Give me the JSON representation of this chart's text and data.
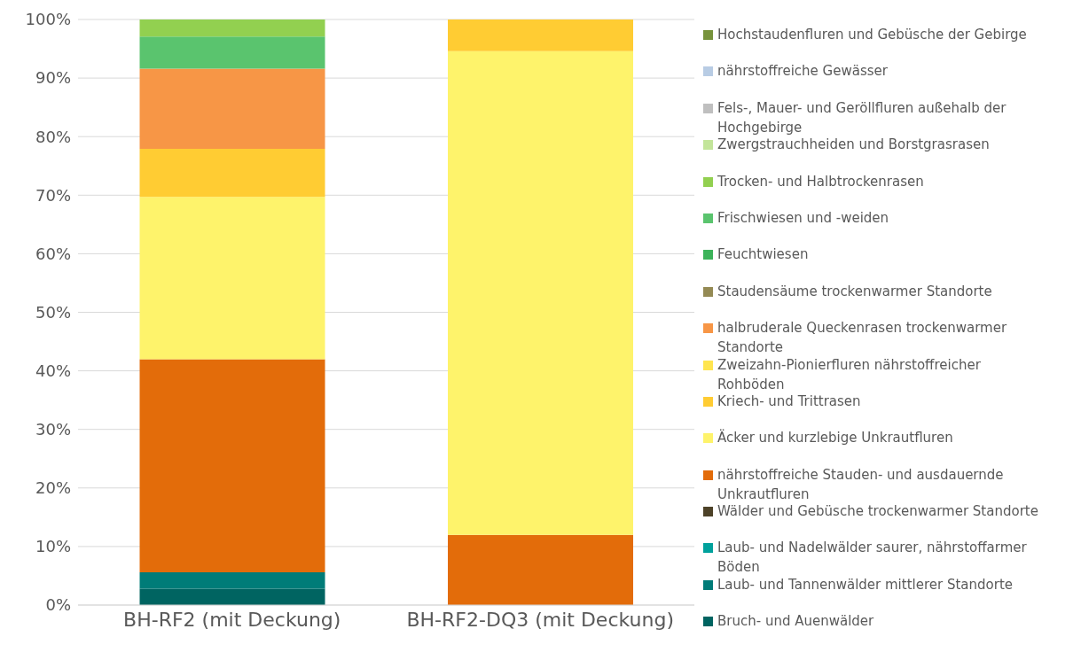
{
  "chart_data": {
    "type": "bar",
    "stacked": true,
    "categories": [
      "BH-RF2 (mit Deckung)",
      "BH-RF2-DQ3 (mit Deckung)"
    ],
    "ylim": [
      0,
      100
    ],
    "yticks": [
      {
        "value": 0,
        "label": "0%"
      },
      {
        "value": 10,
        "label": "10%"
      },
      {
        "value": 20,
        "label": "20%"
      },
      {
        "value": 30,
        "label": "30%"
      },
      {
        "value": 40,
        "label": "40%"
      },
      {
        "value": 50,
        "label": "50%"
      },
      {
        "value": 60,
        "label": "60%"
      },
      {
        "value": 70,
        "label": "70%"
      },
      {
        "value": 80,
        "label": "80%"
      },
      {
        "value": 90,
        "label": "90%"
      },
      {
        "value": 100,
        "label": "100%"
      }
    ],
    "grid": "y",
    "legend": "right",
    "series": [
      {
        "name": "Bruch- und Auenwälder",
        "color": "#006461",
        "values": [
          2.8,
          0
        ]
      },
      {
        "name": "Laub- und Tannenwälder mittlerer Standorte",
        "color": "#007c78",
        "values": [
          2.8,
          0
        ]
      },
      {
        "name": "Laub- und Nadelwälder saurer, nährstoffarmer Böden",
        "color": "#00a19c",
        "values": [
          0,
          0
        ]
      },
      {
        "name": "Wälder und Gebüsche trockenwarmer Standorte",
        "color": "#4d4228",
        "values": [
          0,
          0
        ]
      },
      {
        "name": "nährstoffreiche Stauden- und ausdauernde Unkrautfluren",
        "color": "#e36c0a",
        "values": [
          36.4,
          12
        ]
      },
      {
        "name": "Äcker und kurzlebige Unkrautfluren",
        "color": "#fef36b",
        "values": [
          27.7,
          82.6
        ]
      },
      {
        "name": "Kriech- und Trittrasen",
        "color": "#ffcc33",
        "values": [
          8.2,
          5.4
        ]
      },
      {
        "name": "Zweizahn-Pionierfluren nährstoffreicher Rohböden",
        "color": "#ffe54f",
        "values": [
          0,
          0
        ]
      },
      {
        "name": "halbruderale Queckenrasen trockenwarmer Standorte",
        "color": "#f79646",
        "values": [
          13.7,
          0
        ]
      },
      {
        "name": "Staudensäume trockenwarmer Standorte",
        "color": "#948a54",
        "values": [
          0,
          0
        ]
      },
      {
        "name": "Feuchtwiesen",
        "color": "#3cb35a",
        "values": [
          0,
          0
        ]
      },
      {
        "name": "Frischwiesen und -weiden",
        "color": "#5ac46e",
        "values": [
          5.5,
          0
        ]
      },
      {
        "name": "Trocken- und Halbtrockenrasen",
        "color": "#92d050",
        "values": [
          2.9,
          0
        ]
      },
      {
        "name": "Zwergstrauchheiden und Borstgrasrasen",
        "color": "#c3e59a",
        "values": [
          0,
          0
        ]
      },
      {
        "name": "Fels-, Mauer- und Geröllfluren außehalb der Hochgebirge",
        "color": "#bfbfbf",
        "values": [
          0,
          0
        ]
      },
      {
        "name": "nährstoffreiche Gewässer",
        "color": "#b8cce4",
        "values": [
          0,
          0
        ]
      },
      {
        "name": "Hochstaudenfluren und Gebüsche der Gebirge",
        "color": "#77933c",
        "values": [
          0,
          0
        ]
      }
    ]
  }
}
